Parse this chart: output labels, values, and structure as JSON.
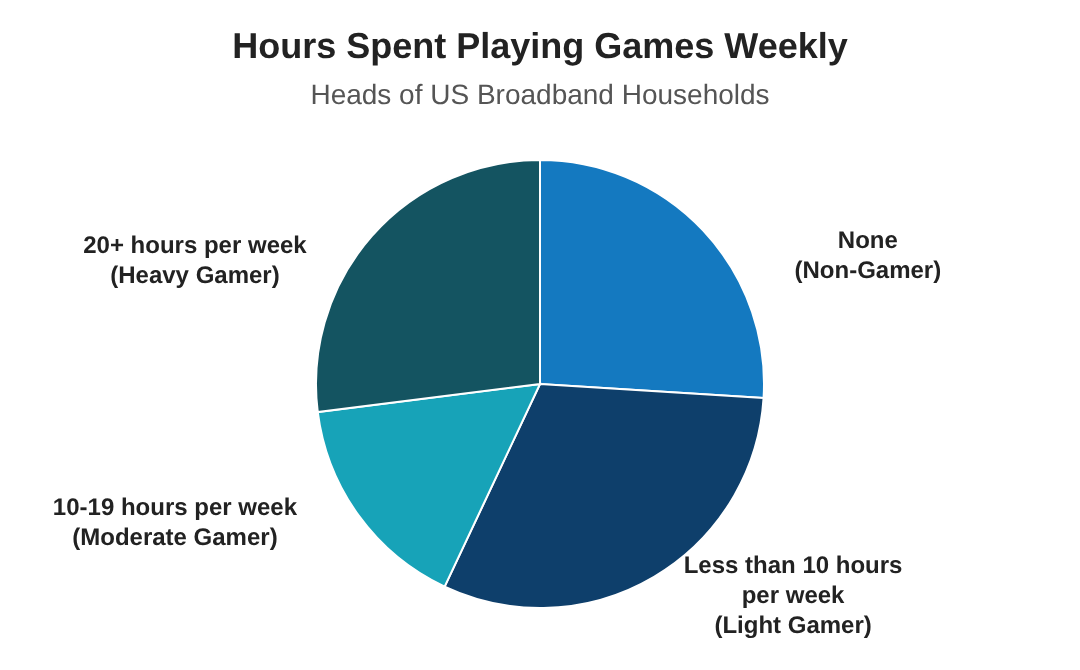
{
  "chart_data": {
    "type": "pie",
    "title": "Hours Spent Playing Games Weekly",
    "subtitle": "Heads of US Broadband Households",
    "categories": [
      "None\n(Non-Gamer)",
      "Less than 10 hours\nper week\n(Light Gamer)",
      "10-19 hours per week\n(Moderate Gamer)",
      "20+ hours per week\n(Heavy Gamer)"
    ],
    "values": [
      26,
      31,
      16,
      27
    ],
    "colors": [
      "#1479c0",
      "#0e3f6b",
      "#17a3b8",
      "#145461"
    ]
  }
}
